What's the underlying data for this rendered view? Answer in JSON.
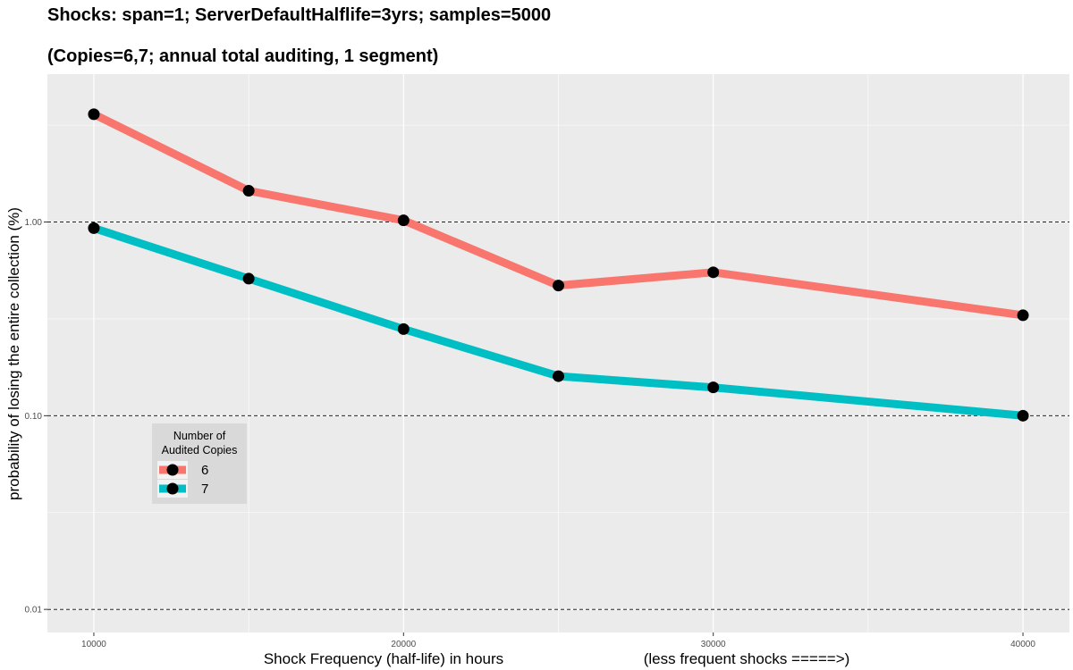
{
  "chart_data": {
    "type": "line",
    "title": "Shocks: span=1; ServerDefaultHalflife=3yrs; samples=5000",
    "subtitle": "(Copies=6,7; annual total auditing, 1 segment)",
    "xlabel": "Shock Frequency (half-life) in hours",
    "xlabel_note": "(less frequent shocks =====>)",
    "ylabel": "probability of losing the entire collection (%)",
    "x": [
      10000,
      15000,
      20000,
      25000,
      30000,
      40000
    ],
    "x_ticks": [
      10000,
      20000,
      30000,
      40000
    ],
    "x_tick_labels": [
      "10000",
      "20000",
      "30000",
      "40000"
    ],
    "xlim": [
      8500,
      41500
    ],
    "y_scale": "log",
    "ylim": [
      0.0076,
      5.8
    ],
    "y_ticks": [
      0.01,
      0.1,
      1.0
    ],
    "y_tick_labels": [
      "0.01",
      "0.10",
      "1.00"
    ],
    "reference_lines": [
      0.01,
      0.1,
      1.0
    ],
    "grid": true,
    "legend": {
      "title_line1": "Number of",
      "title_line2": "Audited Copies",
      "placement": "inside-bottom-left"
    },
    "series": [
      {
        "name": "6",
        "color": "#F8766D",
        "values": [
          3.6,
          1.45,
          1.02,
          0.47,
          0.55,
          0.33
        ]
      },
      {
        "name": "7",
        "color": "#00BFC4",
        "values": [
          0.93,
          0.51,
          0.28,
          0.16,
          0.14,
          0.1
        ]
      }
    ]
  }
}
